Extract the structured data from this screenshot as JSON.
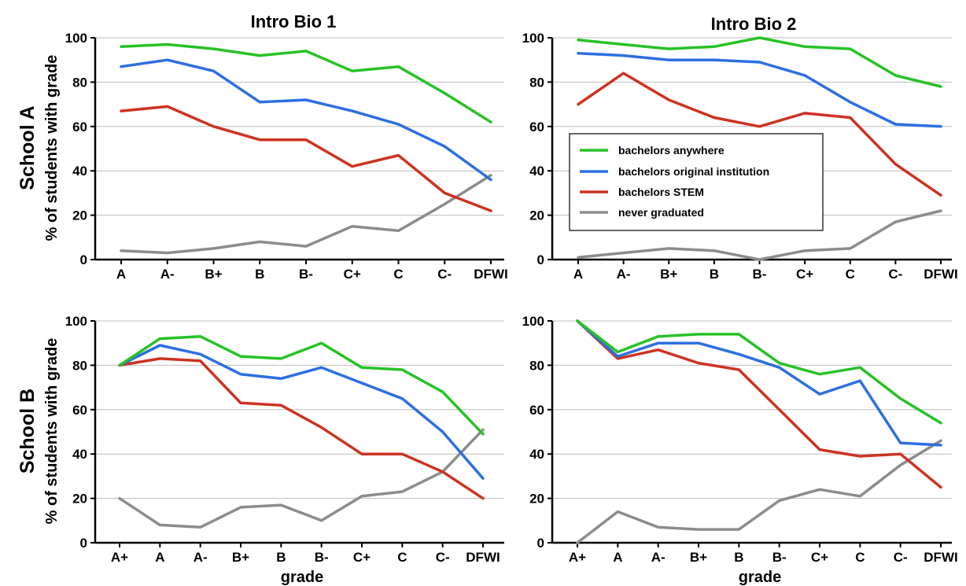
{
  "figure": {
    "col_titles": [
      "Intro Bio 1",
      "Intro Bio 2"
    ],
    "row_labels": [
      "School A",
      "School B"
    ],
    "ylabel": "% of students with grade",
    "xlabel": "grade",
    "colors": {
      "bachelors anywhere": "#27c227",
      "bachelors original institution": "#2d6fe0",
      "bachelors STEM": "#cc3322",
      "never graduated": "#8c8c8c"
    }
  },
  "legend": {
    "placement": "inside upper-right panel, center-left",
    "entries": [
      "bachelors anywhere",
      "bachelors original institution",
      "bachelors STEM",
      "never graduated"
    ]
  },
  "chart_data": [
    {
      "type": "line",
      "title": "Intro Bio 1",
      "row": "School A",
      "categories": [
        "A",
        "A-",
        "B+",
        "B",
        "B-",
        "C+",
        "C",
        "C-",
        "DFWI"
      ],
      "ylim": [
        0,
        100
      ],
      "yticks": [
        0,
        20,
        40,
        60,
        80,
        100
      ],
      "grid": true,
      "series": [
        {
          "name": "bachelors anywhere",
          "values": [
            96,
            97,
            95,
            92,
            94,
            85,
            87,
            75,
            62
          ]
        },
        {
          "name": "bachelors original institution",
          "values": [
            87,
            90,
            85,
            71,
            72,
            67,
            61,
            51,
            36
          ]
        },
        {
          "name": "bachelors STEM",
          "values": [
            67,
            69,
            60,
            54,
            54,
            42,
            47,
            30,
            22
          ]
        },
        {
          "name": "never graduated",
          "values": [
            4,
            3,
            5,
            8,
            6,
            15,
            13,
            25,
            38
          ]
        }
      ]
    },
    {
      "type": "line",
      "title": "Intro Bio 2",
      "row": "School A",
      "categories": [
        "A",
        "A-",
        "B+",
        "B",
        "B-",
        "C+",
        "C",
        "C-",
        "DFWI"
      ],
      "ylim": [
        0,
        100
      ],
      "yticks": [
        0,
        20,
        40,
        60,
        80,
        100
      ],
      "grid": true,
      "series": [
        {
          "name": "bachelors anywhere",
          "values": [
            99,
            97,
            95,
            96,
            100,
            96,
            95,
            83,
            78
          ]
        },
        {
          "name": "bachelors original institution",
          "values": [
            93,
            92,
            90,
            90,
            89,
            83,
            71,
            61,
            60
          ]
        },
        {
          "name": "bachelors STEM",
          "values": [
            70,
            84,
            72,
            64,
            60,
            66,
            64,
            43,
            29
          ]
        },
        {
          "name": "never graduated",
          "values": [
            1,
            3,
            5,
            4,
            0,
            4,
            5,
            17,
            22
          ]
        }
      ]
    },
    {
      "type": "line",
      "title": "",
      "row": "School B",
      "categories": [
        "A+",
        "A",
        "A-",
        "B+",
        "B",
        "B-",
        "C+",
        "C",
        "C-",
        "DFWI"
      ],
      "ylim": [
        0,
        100
      ],
      "yticks": [
        0,
        20,
        40,
        60,
        80,
        100
      ],
      "grid": true,
      "series": [
        {
          "name": "bachelors anywhere",
          "values": [
            80,
            92,
            93,
            84,
            83,
            90,
            79,
            78,
            68,
            49
          ]
        },
        {
          "name": "bachelors original institution",
          "values": [
            80,
            89,
            85,
            76,
            74,
            79,
            72,
            65,
            50,
            29
          ]
        },
        {
          "name": "bachelors STEM",
          "values": [
            80,
            83,
            82,
            63,
            62,
            52,
            40,
            40,
            32,
            20
          ]
        },
        {
          "name": "never graduated",
          "values": [
            20,
            8,
            7,
            16,
            17,
            10,
            21,
            23,
            32,
            51
          ]
        }
      ]
    },
    {
      "type": "line",
      "title": "",
      "row": "School B",
      "categories": [
        "A+",
        "A",
        "A-",
        "B+",
        "B",
        "B-",
        "C+",
        "C",
        "C-",
        "DFWI"
      ],
      "ylim": [
        0,
        100
      ],
      "yticks": [
        0,
        20,
        40,
        60,
        80,
        100
      ],
      "grid": true,
      "series": [
        {
          "name": "bachelors anywhere",
          "values": [
            100,
            86,
            93,
            94,
            94,
            81,
            76,
            79,
            65,
            54
          ]
        },
        {
          "name": "bachelors original institution",
          "values": [
            100,
            84,
            90,
            90,
            85,
            79,
            67,
            73,
            45,
            44
          ]
        },
        {
          "name": "bachelors STEM",
          "values": [
            100,
            83,
            87,
            81,
            78,
            60,
            42,
            39,
            40,
            25
          ]
        },
        {
          "name": "never graduated",
          "values": [
            0,
            14,
            7,
            6,
            6,
            19,
            24,
            21,
            35,
            46
          ]
        }
      ]
    }
  ]
}
